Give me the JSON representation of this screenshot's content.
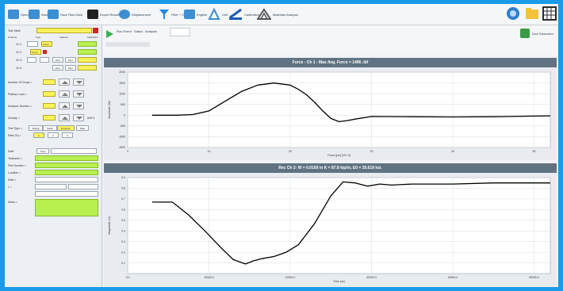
{
  "toolbar": {
    "buttons": [
      {
        "label": "Open",
        "icon": "folder-open-icon",
        "color": "#3d8fd1"
      },
      {
        "label": "Save",
        "icon": "save-icon",
        "color": "#3d8fd1"
      },
      {
        "label": "Save Raw Data",
        "icon": "save-raw-icon",
        "color": "#3d8fd1"
      },
      {
        "label": "Export Results",
        "icon": "export-icon",
        "color": "#222"
      },
      {
        "label": "Displacement",
        "icon": "displacement-icon",
        "color": "#3d8fd1"
      },
      {
        "label": "Filter + CA",
        "icon": "filter-icon",
        "color": "#1e88e5"
      },
      {
        "label": "English",
        "icon": "units-icon",
        "color": "#3d8fd1"
      },
      {
        "label": "Unit",
        "icon": "unit-icon",
        "color": "#3d8fd1"
      },
      {
        "label": "Calibration",
        "icon": "calibration-icon",
        "color": "#1e5bb8"
      },
      {
        "label": "Materials Analysis",
        "icon": "materials-icon",
        "color": "#555"
      }
    ]
  },
  "left_panel": {
    "test_select": "Test Table",
    "channels_header": [
      "Channel",
      "Type",
      "Address",
      "Calibration"
    ],
    "channel_rows": [
      {
        "name": "Ch 1",
        "flag": "Force"
      },
      {
        "name": "Ch 2",
        "flag": "Force"
      },
      {
        "name": "Ch 3",
        "flag": ""
      },
      {
        "name": "Ch 4",
        "flag": ""
      }
    ],
    "channel_buttons": [
      "Zero",
      "Zero"
    ],
    "fields": [
      {
        "label": "Number Of Drops ="
      },
      {
        "label": "Plateau Load ="
      },
      {
        "label": "Analyzer Number ="
      },
      {
        "label": "Density ="
      }
    ],
    "unit_density": "lb/ft^3",
    "test_type_label": "Test Type =",
    "rate_label": "Rate (%) =",
    "test_type_buttons": [
      "Falling",
      "Static",
      "Dynamic",
      "Rate"
    ],
    "rate_buttons": [
      "1",
      "2",
      "3"
    ],
    "date_label": "Date",
    "time_label": "Time",
    "info_labels": [
      "Testname =",
      "Part Number =",
      "Location =",
      "Note =",
      "L =",
      "Notes ="
    ]
  },
  "sub_toolbar": {
    "run_label": "Run Event",
    "status_label": "Status",
    "status_value": "Analysis",
    "save_params_label": "Save Parameters"
  },
  "chart_data": [
    {
      "type": "line",
      "title": "Force - Ch 1 - Max Avg. Force = 1496 .lbf",
      "xlabel": "Force (psi) [10^-3]",
      "ylabel": "Amplitude (lbf)",
      "xlim": [
        0,
        52
      ],
      "ylim": [
        -1500,
        2000
      ],
      "xticks": [
        0,
        10,
        20,
        30,
        40,
        50
      ],
      "yticks": [
        -1500,
        -1000,
        -500,
        0,
        500,
        1000,
        1500,
        2000
      ],
      "grid": true,
      "series": [
        {
          "x": [
            3,
            6,
            8,
            10,
            12,
            14,
            16,
            18,
            20,
            21,
            22,
            23,
            24,
            25,
            26,
            27,
            28,
            30,
            35,
            40,
            45,
            50,
            52
          ],
          "y": [
            0,
            0,
            30,
            200,
            650,
            1100,
            1400,
            1495,
            1400,
            1200,
            950,
            600,
            200,
            -150,
            -300,
            -250,
            -180,
            -60,
            -70,
            -80,
            -70,
            -40,
            -30
          ]
        }
      ]
    },
    {
      "type": "line",
      "title": "Rec Ch 2- W = 0.0169 in K = 87.8 kip/in, E0 = 20.619 ksi.",
      "xlabel": "Time (us)",
      "ylabel": "Magnitude (in)",
      "xlim": [
        0,
        52000
      ],
      "ylim": [
        0,
        0.9
      ],
      "xticks": [
        0,
        10000,
        20000,
        30000,
        40000,
        50000
      ],
      "xtick_labels": [
        "0.0",
        "10000.0",
        "20000.0",
        "30000.0",
        "40000.0",
        "50000.0"
      ],
      "yticks": [
        0.1,
        0.2,
        0.3,
        0.4,
        0.5,
        0.6,
        0.7,
        0.8,
        0.9
      ],
      "grid": true,
      "series": [
        {
          "x": [
            3000,
            5500,
            7500,
            9500,
            11500,
            13000,
            14500,
            15500,
            16500,
            18000,
            19500,
            21000,
            23000,
            25000,
            26500,
            28000,
            29500,
            31000,
            32500,
            35000,
            40000,
            45000,
            50000,
            52000
          ],
          "y": [
            0.67,
            0.67,
            0.55,
            0.4,
            0.24,
            0.13,
            0.09,
            0.12,
            0.14,
            0.16,
            0.2,
            0.27,
            0.47,
            0.73,
            0.86,
            0.85,
            0.82,
            0.84,
            0.83,
            0.84,
            0.84,
            0.85,
            0.85,
            0.85
          ]
        }
      ]
    }
  ]
}
